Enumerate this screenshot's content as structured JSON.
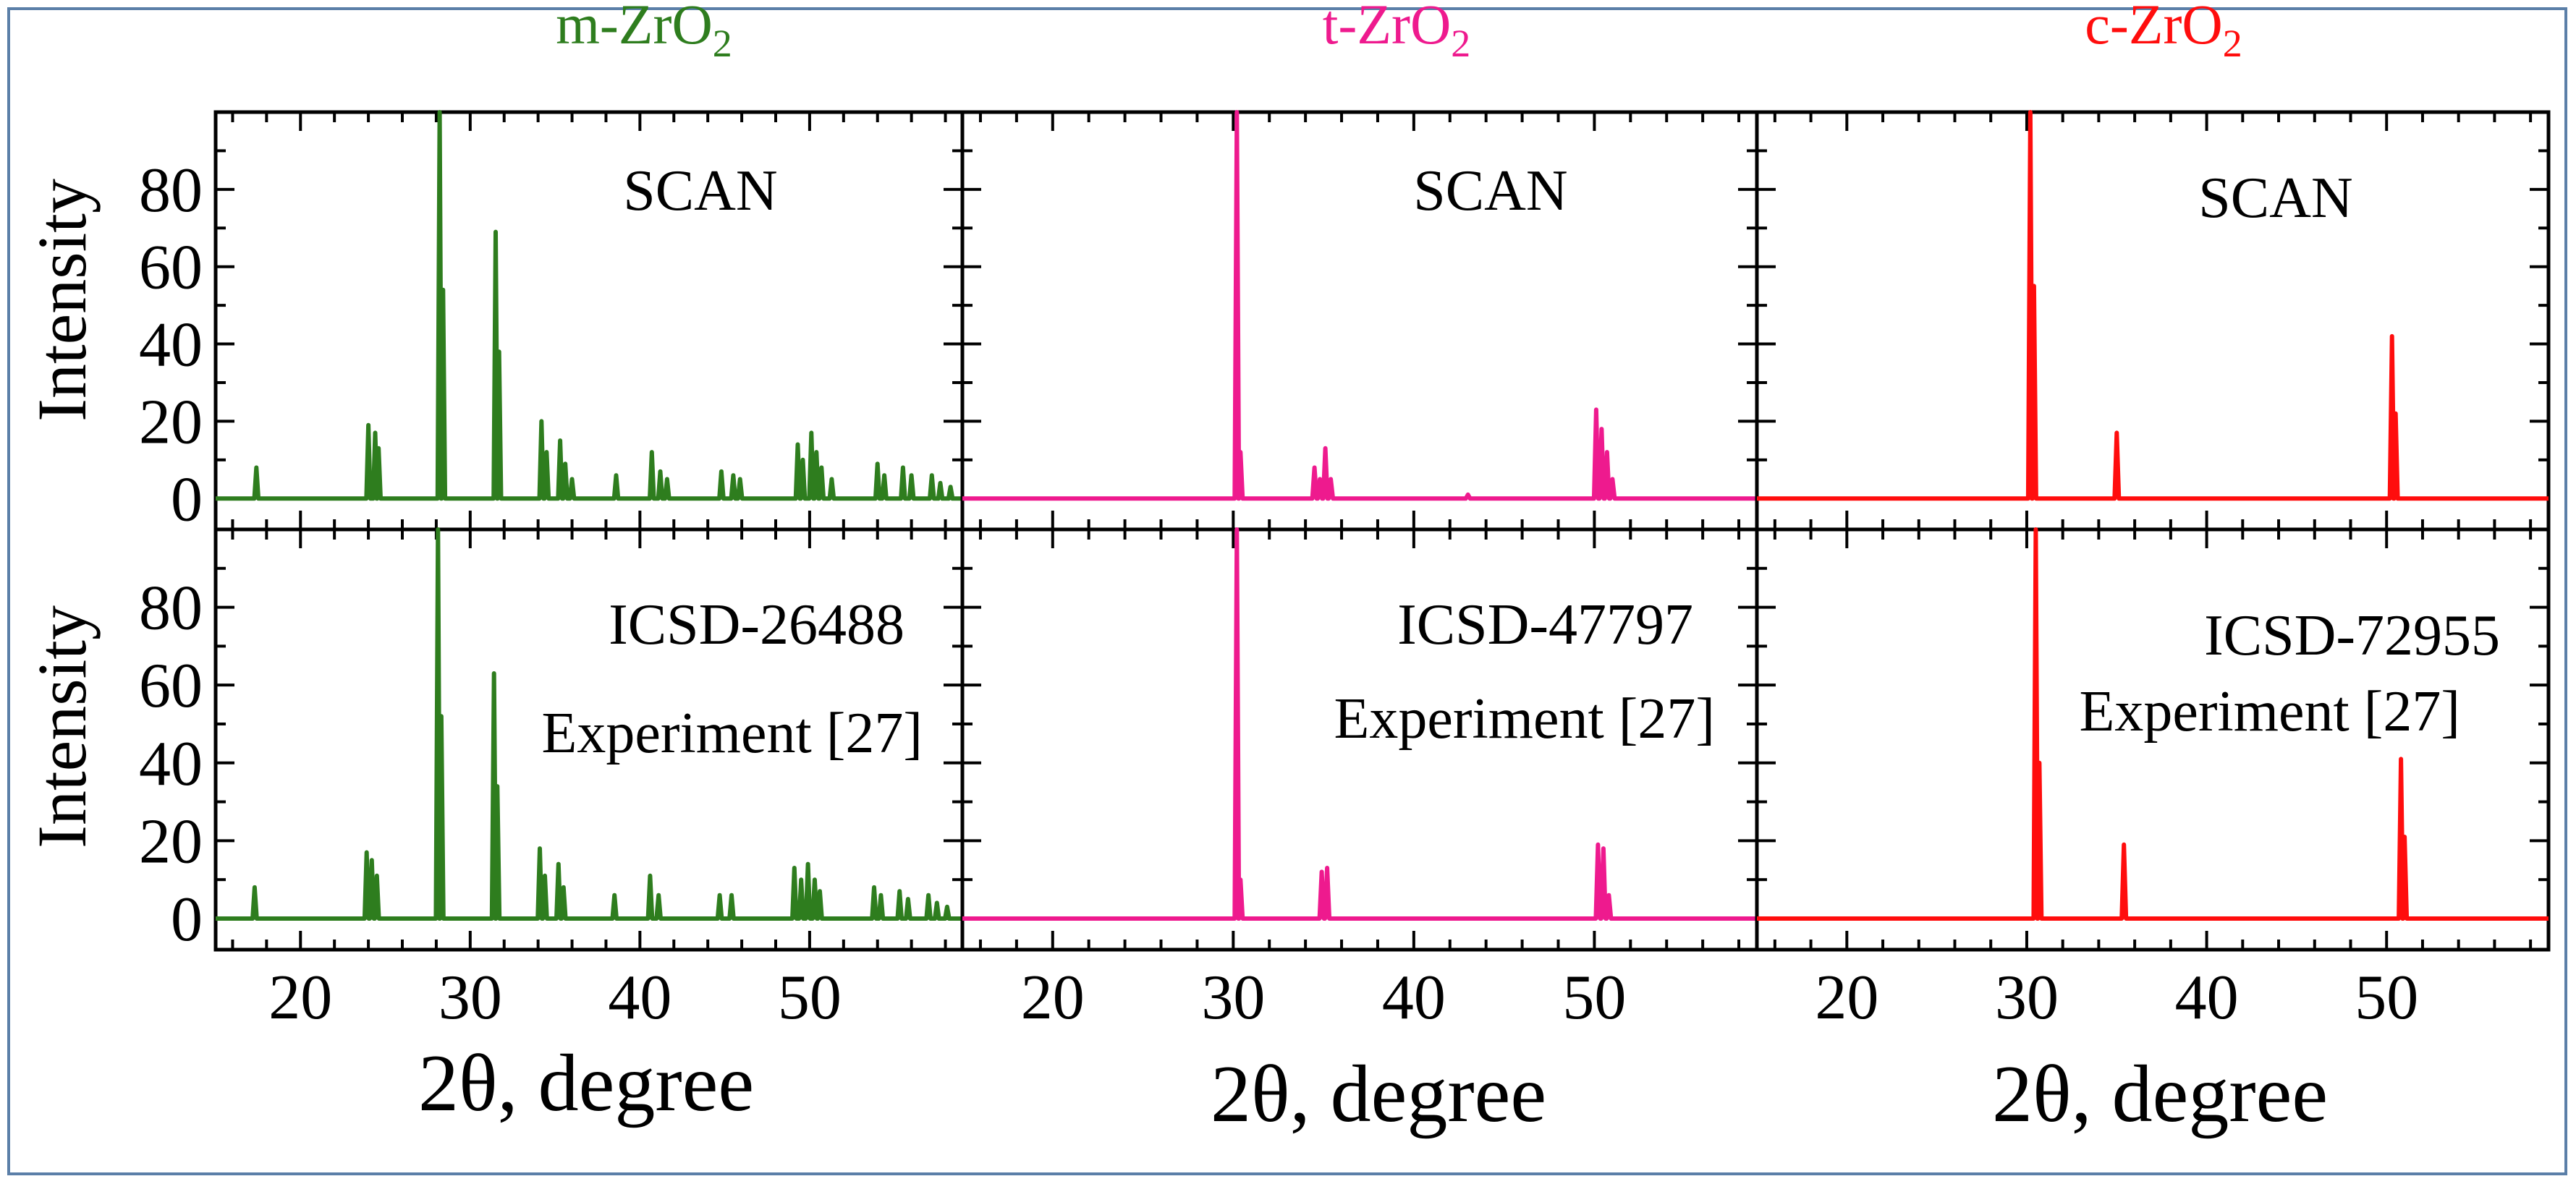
{
  "figure": {
    "y_axis_label": "Intensity",
    "x_axis_label": "2θ, degree"
  },
  "chart_data": [
    {
      "type": "line",
      "phase": "m-ZrO",
      "phase_subscript": "2",
      "color": "#2e7d1e",
      "row": "top",
      "annotations": [
        "SCAN"
      ],
      "xlim": [
        15,
        59
      ],
      "ylim": [
        -8,
        100
      ],
      "x_ticks": [
        20,
        30,
        40,
        50
      ],
      "y_ticks": [
        0,
        20,
        40,
        60,
        80
      ],
      "peaks": [
        [
          17.4,
          8
        ],
        [
          24.0,
          19
        ],
        [
          24.4,
          17
        ],
        [
          24.6,
          13
        ],
        [
          28.2,
          100
        ],
        [
          28.4,
          54
        ],
        [
          31.5,
          69
        ],
        [
          31.7,
          38
        ],
        [
          34.2,
          20
        ],
        [
          34.5,
          12
        ],
        [
          35.3,
          15
        ],
        [
          35.6,
          9
        ],
        [
          36.0,
          5
        ],
        [
          38.6,
          6
        ],
        [
          40.7,
          12
        ],
        [
          41.2,
          7
        ],
        [
          41.6,
          5
        ],
        [
          44.8,
          7
        ],
        [
          45.5,
          6
        ],
        [
          45.9,
          5
        ],
        [
          49.3,
          14
        ],
        [
          49.6,
          10
        ],
        [
          50.1,
          17
        ],
        [
          50.4,
          12
        ],
        [
          50.7,
          8
        ],
        [
          51.3,
          5
        ],
        [
          54.0,
          9
        ],
        [
          54.4,
          6
        ],
        [
          55.5,
          8
        ],
        [
          56.0,
          6
        ],
        [
          57.2,
          6
        ],
        [
          57.7,
          4
        ],
        [
          58.3,
          3
        ]
      ]
    },
    {
      "type": "line",
      "phase": "m-ZrO",
      "phase_subscript": "2",
      "color": "#2e7d1e",
      "row": "bottom",
      "annotations": [
        "ICSD-26488",
        "Experiment [27]"
      ],
      "xlim": [
        15,
        59
      ],
      "ylim": [
        -8,
        100
      ],
      "x_ticks": [
        20,
        30,
        40,
        50
      ],
      "y_ticks": [
        0,
        20,
        40,
        60,
        80
      ],
      "peaks": [
        [
          17.3,
          8
        ],
        [
          23.9,
          17
        ],
        [
          24.2,
          15
        ],
        [
          24.5,
          11
        ],
        [
          28.1,
          100
        ],
        [
          28.3,
          52
        ],
        [
          31.4,
          63
        ],
        [
          31.6,
          34
        ],
        [
          34.1,
          18
        ],
        [
          34.4,
          11
        ],
        [
          35.2,
          14
        ],
        [
          35.5,
          8
        ],
        [
          38.5,
          6
        ],
        [
          40.6,
          11
        ],
        [
          41.1,
          6
        ],
        [
          44.7,
          6
        ],
        [
          45.4,
          6
        ],
        [
          49.1,
          13
        ],
        [
          49.5,
          10
        ],
        [
          49.9,
          14
        ],
        [
          50.3,
          10
        ],
        [
          50.6,
          7
        ],
        [
          53.8,
          8
        ],
        [
          54.2,
          6
        ],
        [
          55.3,
          7
        ],
        [
          55.8,
          5
        ],
        [
          57.0,
          6
        ],
        [
          57.5,
          4
        ],
        [
          58.1,
          3
        ]
      ]
    },
    {
      "type": "line",
      "phase": "t-ZrO",
      "phase_subscript": "2",
      "color": "#ee1a8e",
      "row": "top",
      "annotations": [
        "SCAN"
      ],
      "xlim": [
        15,
        59
      ],
      "ylim": [
        -8,
        100
      ],
      "x_ticks": [
        20,
        30,
        40,
        50
      ],
      "y_ticks": [
        0,
        20,
        40,
        60,
        80
      ],
      "peaks": [
        [
          30.2,
          100
        ],
        [
          30.4,
          12
        ],
        [
          34.5,
          8
        ],
        [
          34.8,
          5
        ],
        [
          35.1,
          13
        ],
        [
          35.4,
          5
        ],
        [
          43.0,
          1
        ],
        [
          50.1,
          23
        ],
        [
          50.4,
          18
        ],
        [
          50.7,
          12
        ],
        [
          51.0,
          5
        ]
      ]
    },
    {
      "type": "line",
      "phase": "t-ZrO",
      "phase_subscript": "2",
      "color": "#ee1a8e",
      "row": "bottom",
      "annotations": [
        "ICSD-47797",
        "Experiment [27]"
      ],
      "xlim": [
        15,
        59
      ],
      "ylim": [
        -8,
        100
      ],
      "x_ticks": [
        20,
        30,
        40,
        50
      ],
      "y_ticks": [
        0,
        20,
        40,
        60,
        80
      ],
      "peaks": [
        [
          30.2,
          100
        ],
        [
          30.4,
          10
        ],
        [
          34.9,
          12
        ],
        [
          35.2,
          13
        ],
        [
          50.2,
          19
        ],
        [
          50.5,
          18
        ],
        [
          50.8,
          6
        ]
      ]
    },
    {
      "type": "line",
      "phase": "c-ZrO",
      "phase_subscript": "2",
      "color": "#ff0d0d",
      "row": "top",
      "annotations": [
        "SCAN"
      ],
      "xlim": [
        15,
        59
      ],
      "ylim": [
        -8,
        100
      ],
      "x_ticks": [
        20,
        30,
        40,
        50
      ],
      "y_ticks": [
        0,
        20,
        40,
        60,
        80
      ],
      "peaks": [
        [
          30.2,
          100
        ],
        [
          30.4,
          55
        ],
        [
          35.0,
          17
        ],
        [
          50.3,
          42
        ],
        [
          50.5,
          22
        ]
      ]
    },
    {
      "type": "line",
      "phase": "c-ZrO",
      "phase_subscript": "2",
      "color": "#ff0d0d",
      "row": "bottom",
      "annotations": [
        "ICSD-72955",
        "Experiment [27]"
      ],
      "xlim": [
        15,
        59
      ],
      "ylim": [
        -8,
        100
      ],
      "x_ticks": [
        20,
        30,
        40,
        50
      ],
      "y_ticks": [
        0,
        20,
        40,
        60,
        80
      ],
      "peaks": [
        [
          30.5,
          100
        ],
        [
          30.7,
          40
        ],
        [
          35.4,
          19
        ],
        [
          50.8,
          41
        ],
        [
          51.0,
          21
        ]
      ]
    }
  ]
}
